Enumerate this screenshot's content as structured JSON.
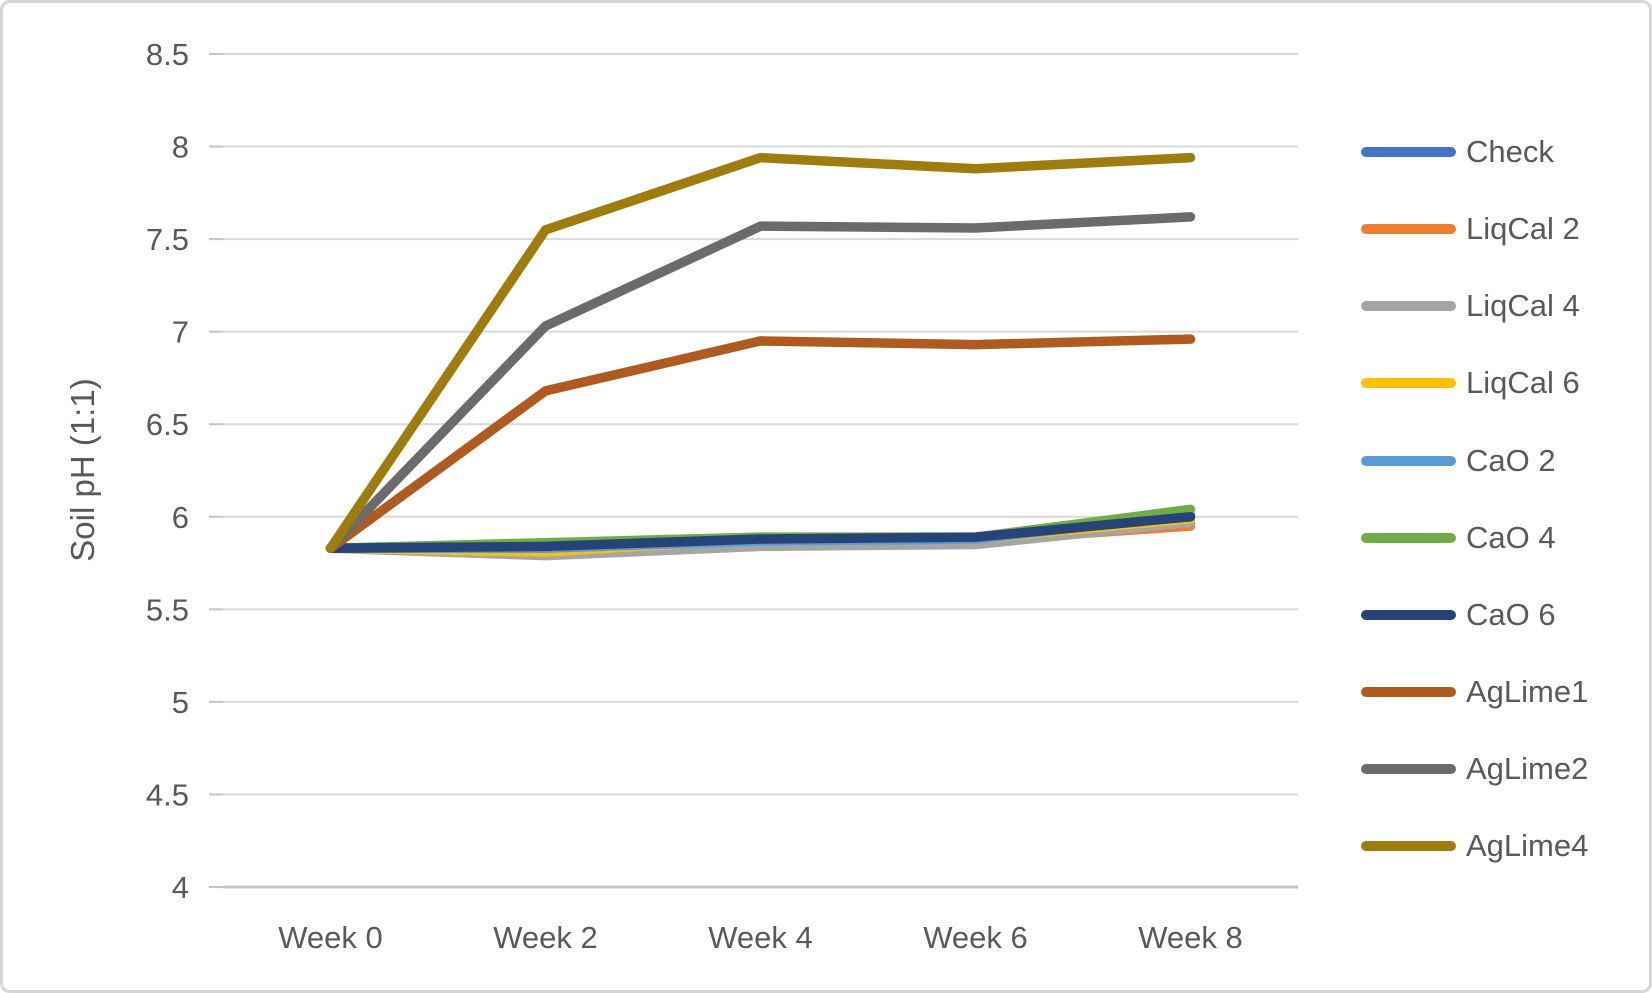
{
  "chart": {
    "background": "#ffffff",
    "frame_border_color": "#d6d6d6",
    "text_color": "#595959",
    "gridline_color": "#d9d9d9",
    "axis_line_color": "#c3c3c3"
  },
  "chart_data": {
    "type": "line",
    "title": "",
    "xlabel": "",
    "ylabel": "Soil pH (1:1)",
    "categories": [
      "Week 0",
      "Week 2",
      "Week 4",
      "Week 6",
      "Week 8"
    ],
    "ylim": [
      4,
      8.5
    ],
    "y_tick_step": 0.5,
    "y_ticks": [
      {
        "value": 8.5,
        "label": "8.5"
      },
      {
        "value": 8.0,
        "label": "8"
      },
      {
        "value": 7.5,
        "label": "7.5"
      },
      {
        "value": 7.0,
        "label": "7"
      },
      {
        "value": 6.5,
        "label": "6.5"
      },
      {
        "value": 6.0,
        "label": "6"
      },
      {
        "value": 5.5,
        "label": "5.5"
      },
      {
        "value": 5.0,
        "label": "5"
      },
      {
        "value": 4.5,
        "label": "4.5"
      },
      {
        "value": 4.0,
        "label": "4"
      }
    ],
    "grid": true,
    "legend_position": "right",
    "series": [
      {
        "name": "Check",
        "color": "#4472C4",
        "values": [
          5.83,
          5.83,
          5.87,
          5.88,
          6.0
        ]
      },
      {
        "name": "LiqCal 2",
        "color": "#ED7D31",
        "values": [
          5.83,
          5.82,
          5.86,
          5.87,
          5.95
        ]
      },
      {
        "name": "LiqCal 4",
        "color": "#A5A5A5",
        "values": [
          5.83,
          5.79,
          5.84,
          5.85,
          5.97
        ]
      },
      {
        "name": "LiqCal 6",
        "color": "#FFC000",
        "values": [
          5.83,
          5.81,
          5.88,
          5.88,
          5.99
        ]
      },
      {
        "name": "CaO 2",
        "color": "#5B9BD5",
        "values": [
          5.83,
          5.83,
          5.87,
          5.88,
          6.01
        ]
      },
      {
        "name": "CaO 4",
        "color": "#70AD47",
        "values": [
          5.83,
          5.86,
          5.89,
          5.89,
          6.04
        ]
      },
      {
        "name": "CaO 6",
        "color": "#264478",
        "values": [
          5.83,
          5.84,
          5.88,
          5.89,
          6.0
        ]
      },
      {
        "name": "AgLime1",
        "color": "#AE5A21",
        "values": [
          5.83,
          6.68,
          6.95,
          6.93,
          6.96
        ]
      },
      {
        "name": "AgLime2",
        "color": "#6B6B6B",
        "values": [
          5.83,
          7.03,
          7.57,
          7.56,
          7.62
        ]
      },
      {
        "name": "AgLime4",
        "color": "#9E7C0E",
        "values": [
          5.83,
          7.55,
          7.94,
          7.88,
          7.94
        ]
      }
    ]
  }
}
